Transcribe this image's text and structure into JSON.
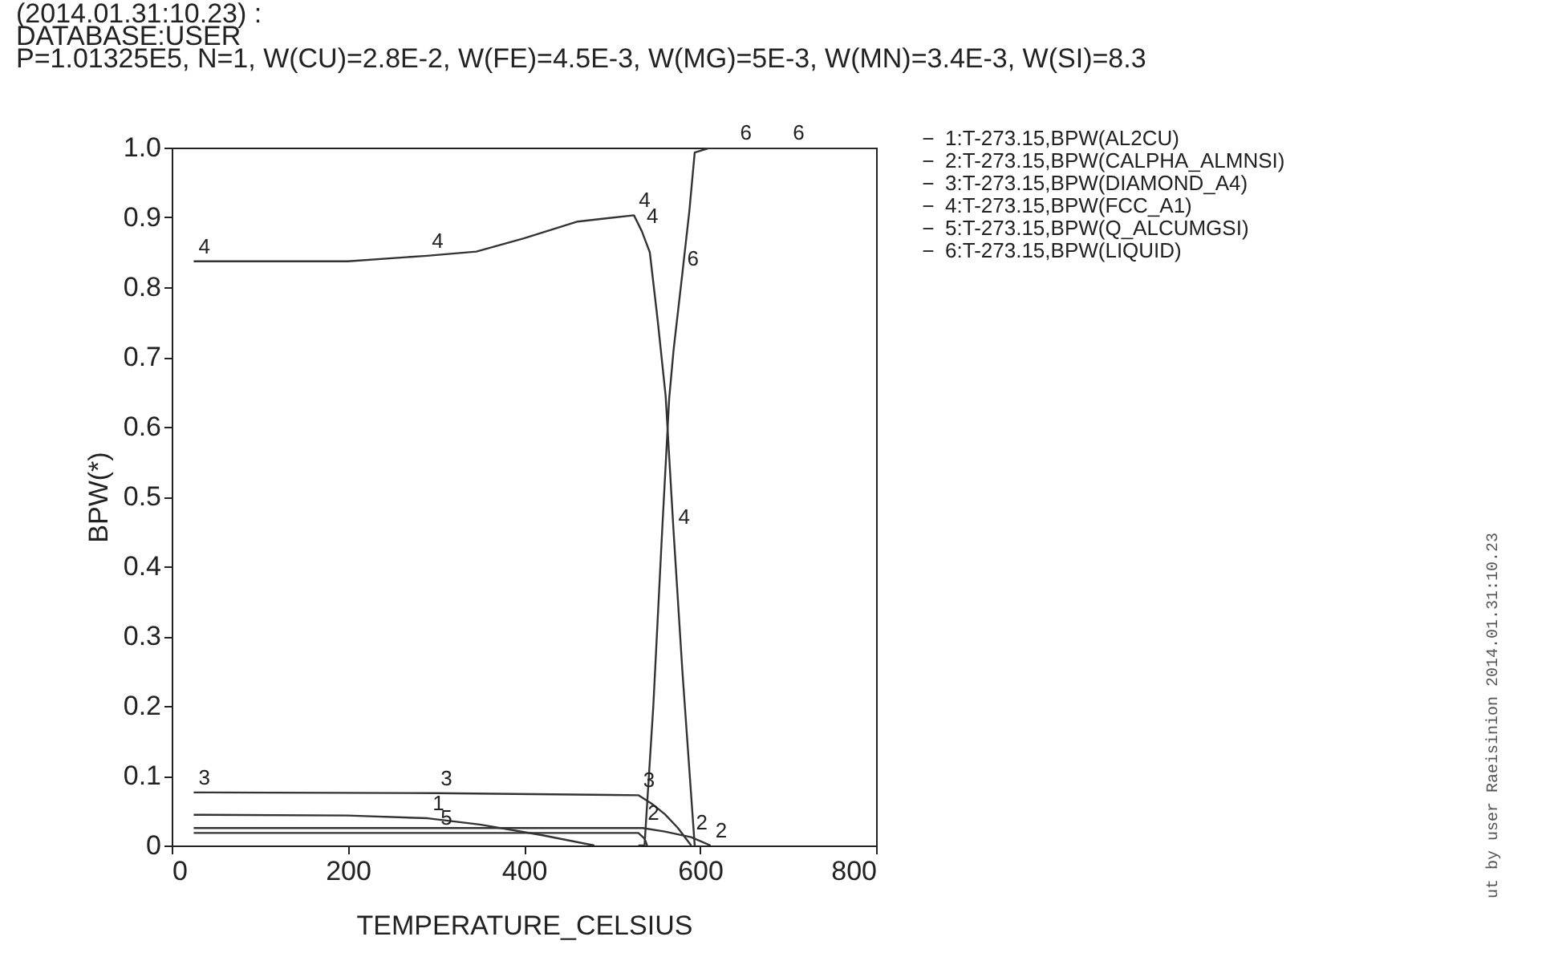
{
  "chart_data": {
    "type": "line",
    "title": "(2014.01.31:10.23) :",
    "subtitle": "DATABASE:USER",
    "xlabel": "TEMPERATURE_CELSIUS",
    "ylabel": "BPW(*)",
    "xlim": [
      0,
      800
    ],
    "xticks": [
      0,
      200,
      400,
      600,
      800
    ],
    "ylim": [
      0,
      1
    ],
    "yticks": [
      0,
      0.1,
      0.2,
      0.3,
      0.4,
      0.5,
      0.6,
      0.7,
      0.8,
      0.9,
      {
        "value": 1,
        "label": "1.0"
      }
    ],
    "grid": false,
    "legend": "right",
    "marker": "none",
    "line_style": "solid",
    "series": [
      {
        "name": "1:T-273.15,BPW(AL2CU)",
        "color": "#333333",
        "x": [
          25,
          200,
          291,
          350,
          420,
          480
        ],
        "values": [
          0.044,
          0.043,
          0.039,
          0.03,
          0.015,
          0
        ]
      },
      {
        "name": "2:T-273.15,BPW(CALPHA_ALMNSI)",
        "color": "#333333",
        "x": [
          25,
          535,
          560,
          590,
          612
        ],
        "values": [
          0.025,
          0.025,
          0.02,
          0.012,
          0
        ]
      },
      {
        "name": "3:T-273.15,BPW(DIAMOND_A4)",
        "color": "#333333",
        "x": [
          25,
          300,
          530,
          545,
          560,
          575,
          590
        ],
        "values": [
          0.076,
          0.075,
          0.072,
          0.06,
          0.045,
          0.025,
          0
        ]
      },
      {
        "name": "4:T-273.15,BPW(FCC_A1)",
        "color": "#333333",
        "x": [
          25,
          200,
          290,
          346,
          400,
          461,
          525,
          534,
          543,
          552,
          561,
          570,
          580,
          594
        ],
        "values": [
          0.837,
          0.837,
          0.845,
          0.851,
          0.87,
          0.894,
          0.903,
          0.88,
          0.85,
          0.752,
          0.644,
          0.45,
          0.25,
          0
        ]
      },
      {
        "name": "5:T-273.15,BPW(Q_ALCUMGSI)",
        "color": "#333333",
        "x": [
          25,
          300,
          530,
          537,
          540
        ],
        "values": [
          0.018,
          0.018,
          0.018,
          0.01,
          0
        ]
      },
      {
        "name": "6:T-273.15,BPW(LIQUID)",
        "color": "#333333",
        "x": [
          530,
          537,
          547,
          557,
          565,
          570,
          580,
          588,
          594,
          612,
          640,
          700,
          800
        ],
        "values": [
          0,
          0,
          0.2,
          0.45,
          0.64,
          0.71,
          0.82,
          0.91,
          0.993,
          1.0,
          1.0,
          1.0,
          1.0
        ]
      }
    ],
    "annotations": [
      "P=1.01325E5, N=1, W(CU)=2.8E-2, W(FE)=4.5E-3, W(MG)=5E-3, W(MN)=3.4E-3, W(SI)=8.3",
      "ut by user Raeisinion 2014.01.31:10.23",
      {
        "text": "4",
        "x": 25,
        "y": 0.837
      },
      {
        "text": "4",
        "x": 290,
        "y": 0.845
      },
      {
        "text": "4",
        "x": 525,
        "y": 0.903
      },
      {
        "text": "4",
        "x": 534,
        "y": 0.88
      },
      {
        "text": "4",
        "x": 570,
        "y": 0.45
      },
      {
        "text": "6",
        "x": 580,
        "y": 0.82
      },
      {
        "text": "6",
        "x": 640,
        "y": 1.0
      },
      {
        "text": "6",
        "x": 700,
        "y": 1.0
      },
      {
        "text": "3",
        "x": 25,
        "y": 0.076
      },
      {
        "text": "3",
        "x": 300,
        "y": 0.075
      },
      {
        "text": "3",
        "x": 530,
        "y": 0.072
      },
      {
        "text": "2",
        "x": 535,
        "y": 0.025
      },
      {
        "text": "2",
        "x": 590,
        "y": 0.012
      },
      {
        "text": "2",
        "x": 612,
        "y": 0
      },
      {
        "text": "5",
        "x": 300,
        "y": 0.018
      },
      {
        "text": "1",
        "x": 291,
        "y": 0.039
      }
    ]
  }
}
